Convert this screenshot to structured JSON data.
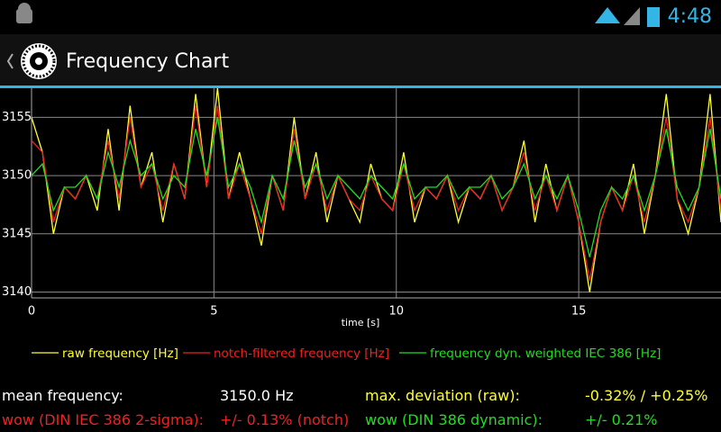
{
  "status_bar": {
    "time": "4:48"
  },
  "app_bar": {
    "title": "Frequency Chart"
  },
  "chart_data": {
    "type": "line",
    "xlabel": "time [s]",
    "x": [
      0,
      0.3,
      0.6,
      0.9,
      1.2,
      1.5,
      1.8,
      2.1,
      2.4,
      2.7,
      3.0,
      3.3,
      3.6,
      3.9,
      4.2,
      4.5,
      4.8,
      5.1,
      5.4,
      5.7,
      6.0,
      6.3,
      6.6,
      6.9,
      7.2,
      7.5,
      7.8,
      8.1,
      8.4,
      8.7,
      9.0,
      9.3,
      9.6,
      9.9,
      10.2,
      10.5,
      10.8,
      11.1,
      11.4,
      11.7,
      12.0,
      12.3,
      12.6,
      12.9,
      13.2,
      13.5,
      13.8,
      14.1,
      14.4,
      14.7,
      15.0,
      15.3,
      15.6,
      15.9,
      16.2,
      16.5,
      16.8,
      17.1,
      17.4,
      17.7,
      18.0,
      18.3,
      18.6,
      18.9
    ],
    "series": [
      {
        "name": "raw frequency [Hz]",
        "color": "#ffff33",
        "values": [
          3155,
          3152,
          3145,
          3149,
          3148,
          3150,
          3147,
          3154,
          3147,
          3156,
          3149,
          3152,
          3146,
          3151,
          3148,
          3157,
          3149,
          3157.5,
          3148,
          3152,
          3148,
          3144,
          3150,
          3147,
          3155,
          3148,
          3152,
          3146,
          3150,
          3148,
          3146,
          3151,
          3148,
          3147,
          3152,
          3146,
          3149,
          3148,
          3150,
          3146,
          3149,
          3148,
          3150,
          3147,
          3149,
          3153,
          3146,
          3151,
          3147,
          3150,
          3146,
          3140,
          3146,
          3149,
          3147,
          3151,
          3145,
          3150,
          3157,
          3148,
          3145,
          3149,
          3157,
          3146
        ]
      },
      {
        "name": "notch-filtered frequency [Hz]",
        "color": "#ee2222",
        "values": [
          3153,
          3152,
          3146,
          3149,
          3148,
          3150,
          3148,
          3153,
          3148,
          3155,
          3149,
          3151,
          3147,
          3151,
          3148,
          3156,
          3149,
          3156,
          3148,
          3151,
          3148,
          3145,
          3150,
          3147,
          3154,
          3148,
          3151,
          3147,
          3150,
          3148,
          3147,
          3150,
          3148,
          3147,
          3151,
          3147,
          3149,
          3148,
          3150,
          3147,
          3149,
          3148,
          3150,
          3147,
          3149,
          3152,
          3147,
          3150,
          3147,
          3150,
          3146,
          3141,
          3146,
          3149,
          3147,
          3150,
          3146,
          3150,
          3155,
          3148,
          3146,
          3149,
          3155,
          3147
        ]
      },
      {
        "name": "frequency dyn. weighted IEC 386 [Hz]",
        "color": "#22dd22",
        "values": [
          3150,
          3151,
          3147,
          3149,
          3149,
          3150,
          3148,
          3152,
          3149,
          3153,
          3150,
          3151,
          3148,
          3150,
          3149,
          3154,
          3150,
          3155,
          3149,
          3151,
          3149,
          3146,
          3150,
          3148,
          3153,
          3149,
          3151,
          3148,
          3150,
          3149,
          3148,
          3150,
          3149,
          3148,
          3151,
          3148,
          3149,
          3149,
          3150,
          3148,
          3149,
          3149,
          3150,
          3148,
          3149,
          3151,
          3148,
          3150,
          3148,
          3150,
          3147,
          3143,
          3147,
          3149,
          3148,
          3150,
          3147,
          3150,
          3154,
          3149,
          3147,
          3149,
          3154,
          3148
        ]
      }
    ],
    "xlim": [
      0,
      18.9
    ],
    "ylim": [
      3139.5,
      3157.5
    ],
    "xticks": [
      0,
      5,
      10,
      15
    ],
    "yticks": [
      3140,
      3145,
      3150,
      3155
    ],
    "grid": true
  },
  "stats": [
    {
      "label": "mean frequency:",
      "value": "3150.0 Hz"
    },
    {
      "label": "max. deviation (raw):",
      "value": "-0.32% / +0.25%"
    },
    {
      "label": "wow (DIN IEC 386 2-sigma):",
      "value": "+/- 0.13% (notch)"
    },
    {
      "label": "wow (DIN 386 dynamic):",
      "value": "+/- 0.21%"
    }
  ]
}
